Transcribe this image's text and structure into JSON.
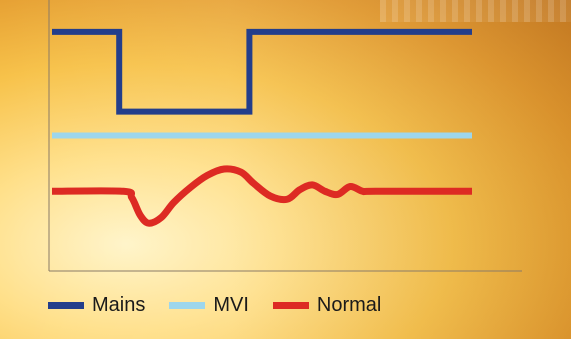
{
  "chart_data": {
    "type": "line",
    "title": "",
    "xlabel": "",
    "ylabel": "",
    "grid": false,
    "legend_placement": "bottom-left",
    "x": [
      0,
      14,
      14,
      46,
      46,
      100
    ],
    "series": [
      {
        "name": "Mains",
        "color": "#233e8b",
        "x": [
          0,
          16,
          16,
          47,
          47,
          100
        ],
        "values": [
          3,
          3,
          2,
          2,
          3,
          3
        ]
      },
      {
        "name": "MVI",
        "color": "#9dd6ec",
        "x": [
          0,
          100
        ],
        "values": [
          1.7,
          1.7
        ]
      },
      {
        "name": "Normal",
        "color": "#dd2a23",
        "x": [
          0,
          17,
          19,
          21,
          23,
          26,
          29,
          33,
          37,
          41,
          45,
          48,
          52,
          56,
          59,
          62,
          65,
          68,
          71,
          74,
          77,
          100
        ],
        "values": [
          1.0,
          1.0,
          0.92,
          0.7,
          0.6,
          0.67,
          0.86,
          1.05,
          1.2,
          1.28,
          1.24,
          1.1,
          0.94,
          0.9,
          1.02,
          1.08,
          1.0,
          0.96,
          1.06,
          1.0,
          1.0,
          1.0
        ]
      }
    ],
    "xlim": [
      0,
      100
    ],
    "ylim": [
      0,
      3.4
    ]
  }
}
